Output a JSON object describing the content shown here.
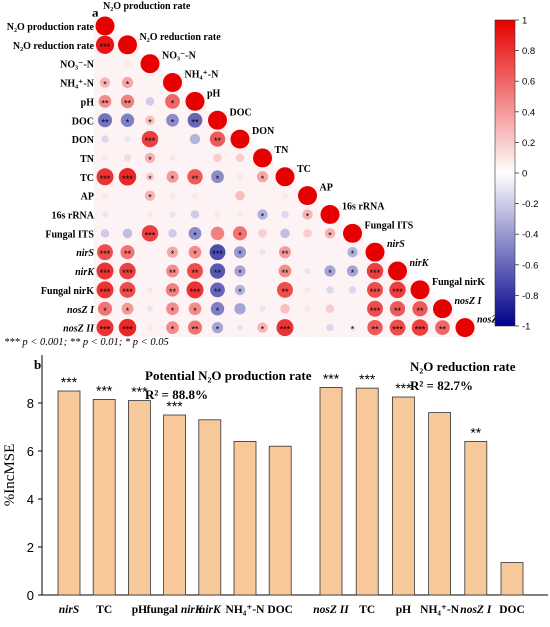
{
  "panel_a": {
    "letter": "a",
    "variables": [
      "N₂O production rate",
      "N₂O reduction rate",
      "NO₃⁻-N",
      "NH₄⁺-N",
      "pH",
      "DOC",
      "DON",
      "TN",
      "TC",
      "AP",
      "16s rRNA",
      "Fungal ITS",
      "nirS",
      "nirK",
      "Fungal nirK",
      "nosZ I",
      "nosZ II"
    ],
    "italic_variables": [
      "nirS",
      "nirK",
      "nosZ I",
      "nosZ II"
    ],
    "colorbar": {
      "ticks": [
        "1",
        "0.8",
        "0.6",
        "0.4",
        "0.2",
        "0",
        "-0.2",
        "-0.4",
        "-0.6",
        "-0.8",
        "-1"
      ],
      "range": [
        -1,
        1
      ],
      "positive_color": "#e60000",
      "negative_color": "#00008b",
      "neutral_color": "#ffffff"
    },
    "significance_legend": "*** p < 0.001; ** p < 0.01; * p < 0.05"
  },
  "chart_data": [
    {
      "type": "heatmap",
      "layout": "lower-triangle-circle",
      "variables": [
        "N2O production rate",
        "N2O reduction rate",
        "NO3--N",
        "NH4+-N",
        "pH",
        "DOC",
        "DON",
        "TN",
        "TC",
        "AP",
        "16s rRNA",
        "Fungal ITS",
        "nirS",
        "nirK",
        "Fungal nirK",
        "nosZ I",
        "nosZ II"
      ],
      "value_range": [
        -1,
        1
      ],
      "rows": [
        [
          1.0
        ],
        [
          0.92,
          1.0
        ],
        [
          0.05,
          0.1,
          1.0
        ],
        [
          0.3,
          0.35,
          0.05,
          1.0
        ],
        [
          0.45,
          0.5,
          -0.2,
          0.6,
          1.0
        ],
        [
          -0.55,
          -0.5,
          0.25,
          -0.45,
          -0.6,
          1.0
        ],
        [
          -0.15,
          -0.1,
          0.75,
          0.05,
          -0.3,
          0.65,
          1.0
        ],
        [
          0.1,
          0.15,
          0.3,
          0.1,
          0.05,
          0.2,
          0.2,
          1.0
        ],
        [
          0.8,
          0.85,
          0.2,
          0.4,
          0.65,
          -0.45,
          0.1,
          0.35,
          1.0
        ],
        [
          0.1,
          0.05,
          0.3,
          0.1,
          0.1,
          -0.05,
          0.25,
          0.05,
          0.1,
          1.0
        ],
        [
          -0.1,
          -0.05,
          0.1,
          -0.1,
          -0.2,
          0.1,
          0.1,
          -0.3,
          -0.15,
          0.3,
          1.0
        ],
        [
          -0.2,
          -0.25,
          0.75,
          -0.2,
          -0.45,
          0.5,
          0.55,
          0.2,
          -0.25,
          0.2,
          0.3,
          1.0
        ],
        [
          0.7,
          0.55,
          0.05,
          0.35,
          0.45,
          -0.7,
          -0.4,
          -0.1,
          0.4,
          -0.05,
          -0.05,
          -0.3,
          1.0
        ],
        [
          0.8,
          0.75,
          0.05,
          0.45,
          0.7,
          -0.65,
          -0.35,
          -0.05,
          0.45,
          -0.1,
          -0.35,
          -0.35,
          0.75,
          1.0
        ],
        [
          0.8,
          0.7,
          0.1,
          0.5,
          0.8,
          -0.6,
          -0.3,
          0.05,
          0.7,
          0.1,
          -0.15,
          -0.15,
          0.7,
          0.75,
          1.0
        ],
        [
          0.55,
          0.4,
          -0.1,
          0.45,
          0.45,
          -0.5,
          -0.35,
          -0.1,
          0.25,
          0.1,
          0.2,
          0.05,
          0.7,
          0.65,
          0.65,
          1.0
        ],
        [
          0.8,
          0.85,
          0.1,
          0.45,
          0.55,
          -0.35,
          -0.1,
          0.3,
          0.8,
          0.05,
          -0.15,
          -0.1,
          0.65,
          0.7,
          0.75,
          0.6,
          1.0
        ]
      ],
      "significance": [
        [
          ""
        ],
        [
          "***",
          ""
        ],
        [
          "",
          "",
          ""
        ],
        [
          "*",
          "*",
          "",
          ""
        ],
        [
          "**",
          "**",
          "",
          "*",
          ""
        ],
        [
          "**",
          "*",
          "*",
          "*",
          "**",
          ""
        ],
        [
          "",
          "",
          "***",
          "",
          "",
          "**",
          ""
        ],
        [
          "",
          "",
          "*",
          "",
          "",
          "",
          "",
          ""
        ],
        [
          "***",
          "***",
          "*",
          "*",
          "**",
          "*",
          "",
          "*",
          ""
        ],
        [
          "",
          "",
          "*",
          "",
          "",
          "",
          "",
          "",
          "",
          ""
        ],
        [
          "",
          "",
          "",
          "",
          "",
          "",
          "",
          "*",
          "",
          "*",
          ""
        ],
        [
          "",
          "",
          "***",
          "",
          "*",
          "",
          "*",
          "",
          "",
          "",
          "*",
          ""
        ],
        [
          "***",
          "**",
          "",
          "*",
          "*",
          "***",
          "*",
          "",
          "**",
          "",
          "",
          "*",
          ""
        ],
        [
          "***",
          "***",
          "",
          "**",
          "**",
          "**",
          "*",
          "",
          "**",
          "",
          "*",
          "*",
          "***",
          ""
        ],
        [
          "***",
          "***",
          "",
          "**",
          "***",
          "**",
          "*",
          "",
          "**",
          "",
          "",
          "",
          "***",
          "***",
          ""
        ],
        [
          "*",
          "*",
          "",
          "*",
          "*",
          "*",
          "",
          "",
          "",
          "",
          "",
          "",
          "***",
          "**",
          "**",
          ""
        ],
        [
          "***",
          "***",
          "",
          "*",
          "**",
          "*",
          "",
          "*",
          "***",
          "",
          "",
          "*",
          "**",
          "***",
          "***",
          "**",
          ""
        ]
      ]
    },
    {
      "type": "bar",
      "title": "Potential N₂O production rate",
      "r2": "R² = 88.8%",
      "categories": [
        "nirS",
        "TC",
        "pH",
        "fungal nirK",
        "nirK",
        "NH₄⁺-N",
        "DOC"
      ],
      "values": [
        8.5,
        8.15,
        8.1,
        7.5,
        7.3,
        6.4,
        6.2
      ],
      "significance": [
        "***",
        "***",
        "***",
        "***",
        "",
        "",
        ""
      ],
      "ylabel": "%IncMSE",
      "ylim": [
        0,
        10
      ],
      "yticks": [
        "0",
        "2",
        "4",
        "6",
        "8"
      ]
    },
    {
      "type": "bar",
      "title": "N₂O reduction rate",
      "r2": "R² = 82.7%",
      "categories": [
        "nosZ II",
        "TC",
        "pH",
        "NH₄⁺-N",
        "nosZ I",
        "DOC"
      ],
      "values": [
        8.65,
        8.62,
        8.25,
        7.6,
        6.4,
        1.35
      ],
      "significance": [
        "***",
        "***",
        "***",
        "",
        "**",
        ""
      ],
      "ylim": [
        0,
        10
      ]
    }
  ],
  "panel_b": {
    "letter": "b",
    "bar_color": "#f7c899",
    "bar_edge": "#333333"
  }
}
